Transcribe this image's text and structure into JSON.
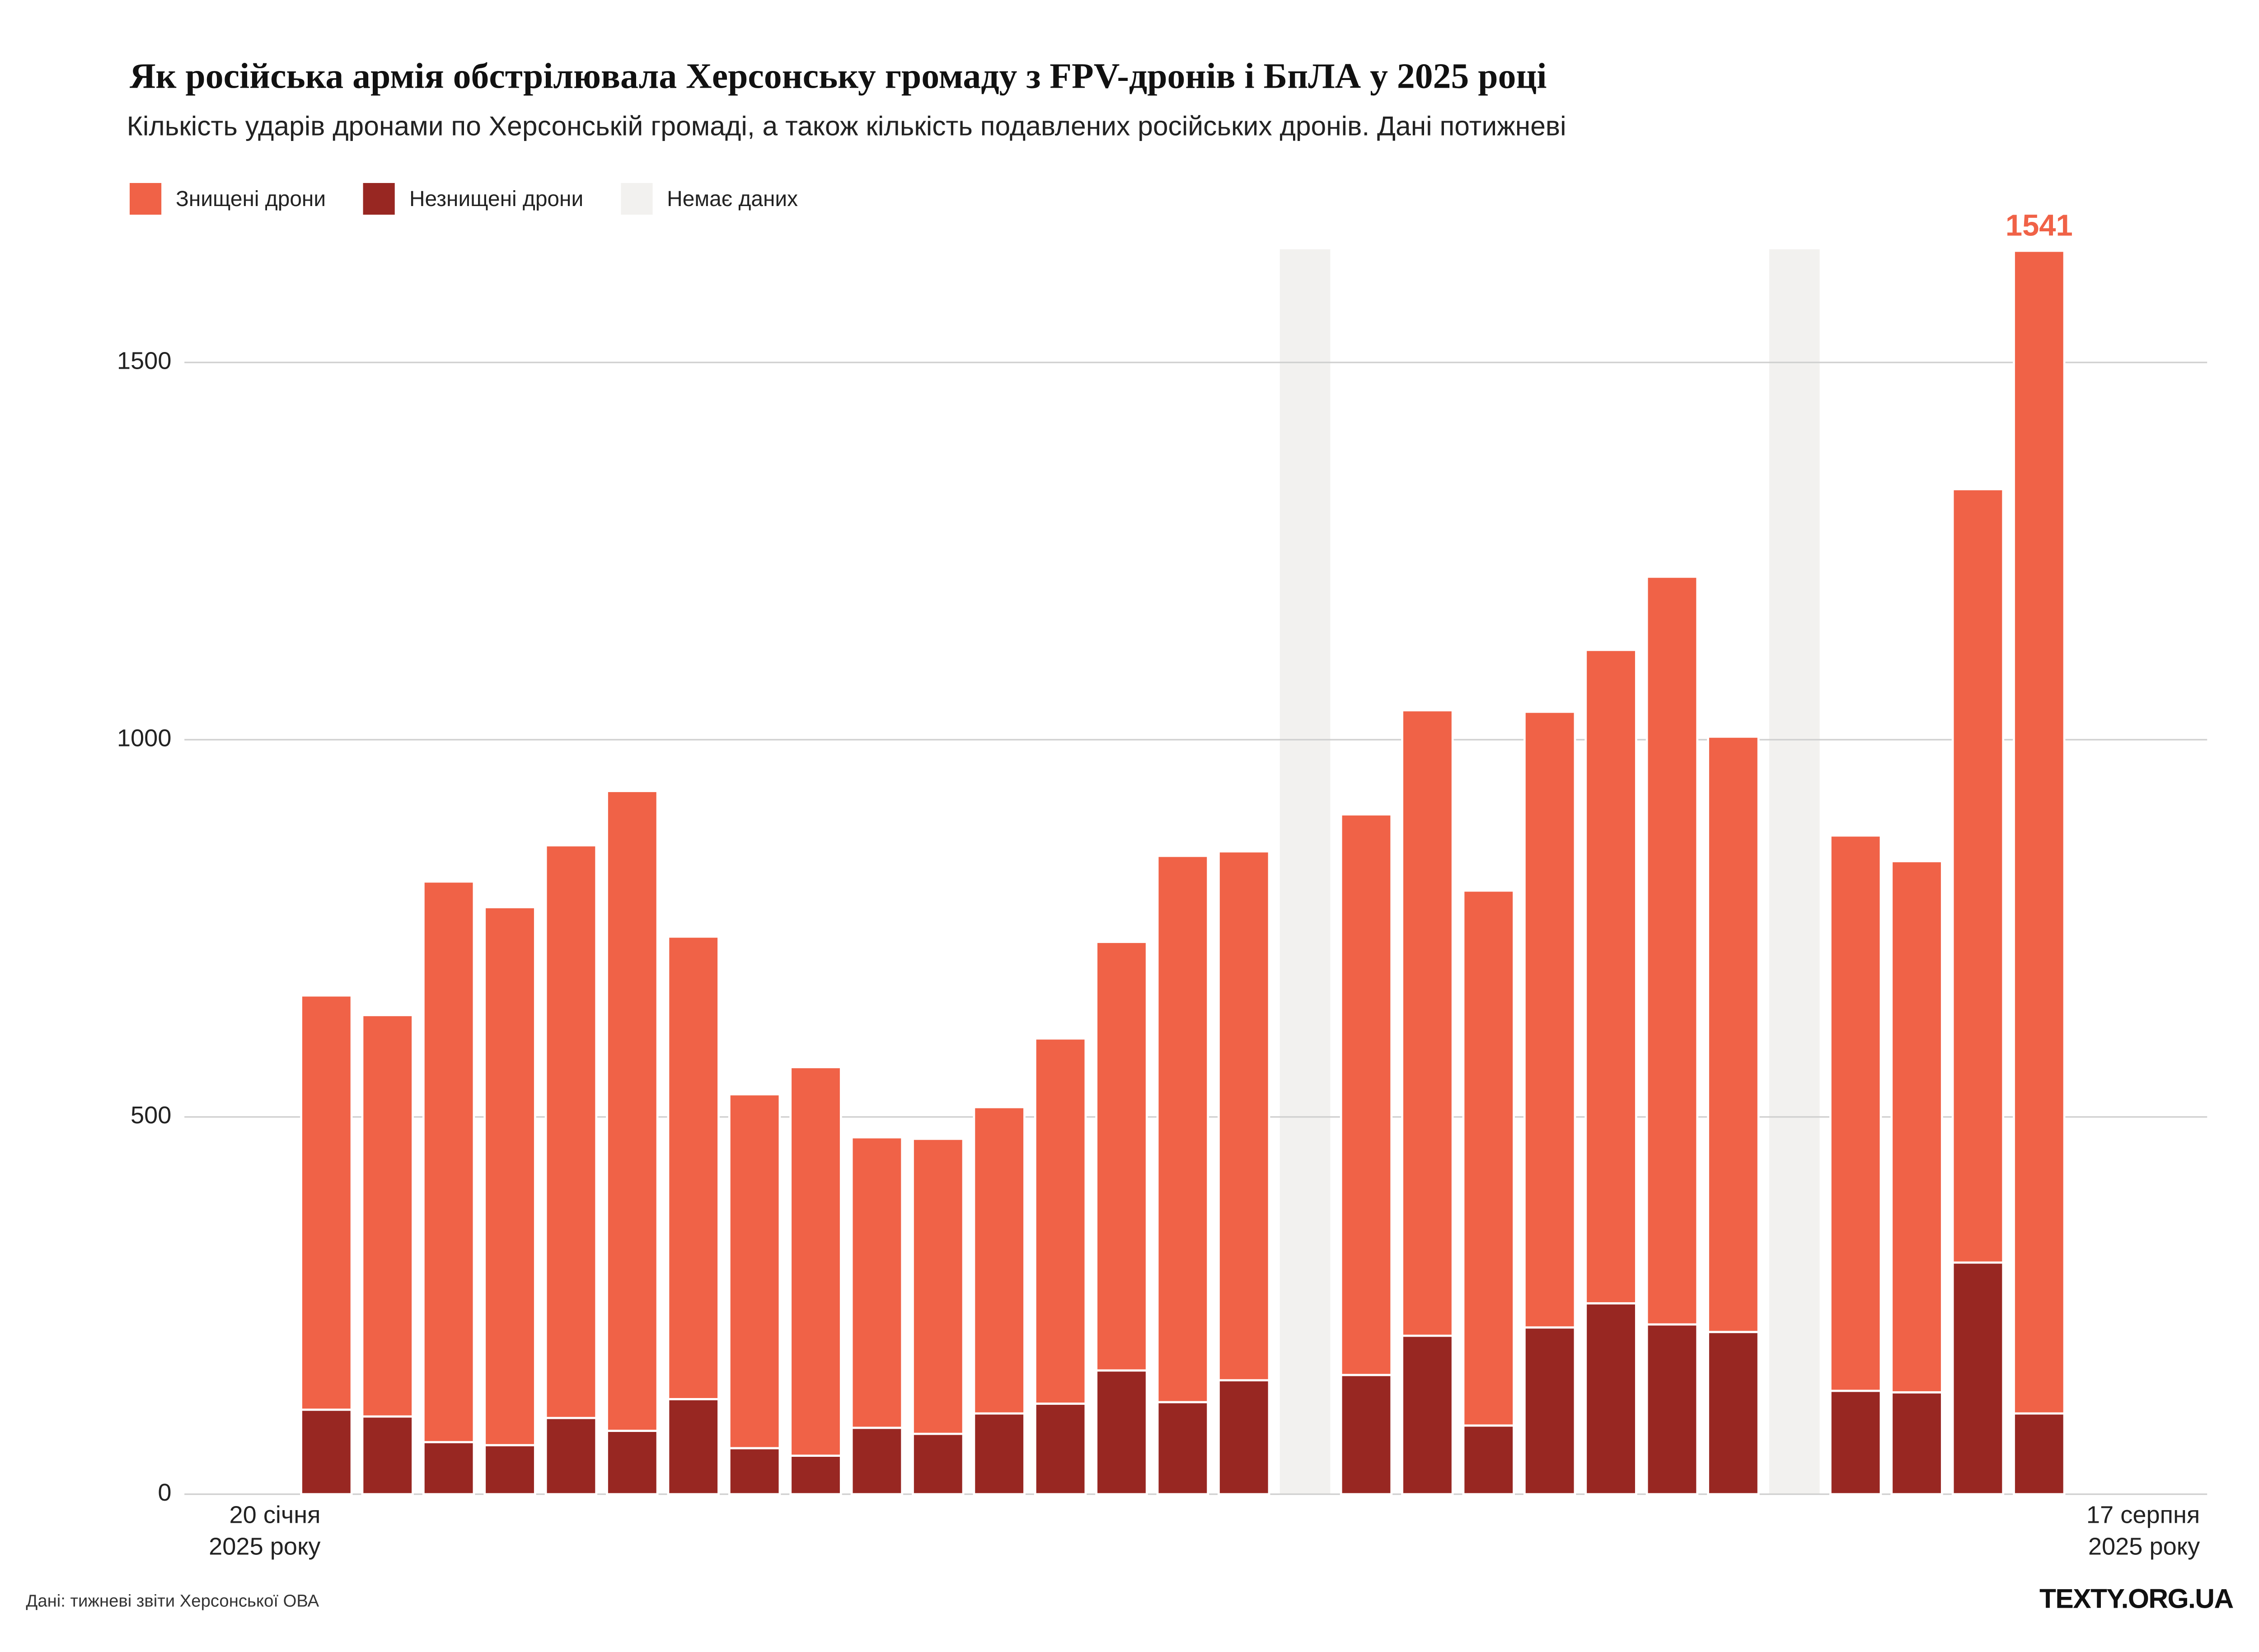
{
  "chart_data": {
    "type": "stacked_bar",
    "title": "Як російська армія обстрілювала Херсонську громаду з FPV-дронів і БпЛА у 2025 році",
    "subtitle": "Кількість ударів дронами по Херсонській громаді, а також кількість подавлених російських дронів. Дані потижневі",
    "categories": [
      "20 січня\n2025 року",
      null,
      null,
      null,
      null,
      null,
      null,
      null,
      null,
      null,
      null,
      null,
      null,
      null,
      null,
      null,
      null,
      null,
      null,
      null,
      null,
      null,
      null,
      null,
      null,
      null,
      null,
      null,
      "17 серпня\n2025 року"
    ],
    "series": [
      {
        "name": "Знищені дрони",
        "color": "#f06247",
        "values": [
          549,
          532,
          743,
          713,
          759,
          848,
          613,
          469,
          515,
          385,
          391,
          406,
          484,
          568,
          724,
          701,
          null,
          743,
          829,
          709,
          816,
          866,
          991,
          789,
          null,
          736,
          704,
          1025,
          1541
        ],
        "value_labels": [
          null,
          null,
          null,
          null,
          null,
          null,
          null,
          null,
          null,
          null,
          null,
          null,
          null,
          null,
          null,
          null,
          null,
          null,
          null,
          null,
          null,
          null,
          null,
          null,
          null,
          null,
          null,
          null,
          "1541"
        ]
      },
      {
        "name": "Незнищені дрони",
        "color": "#982722",
        "values": [
          112,
          103,
          69,
          65,
          101,
          84,
          126,
          61,
          51,
          88,
          80,
          107,
          120,
          164,
          122,
          151,
          null,
          158,
          210,
          91,
          221,
          253,
          225,
          215,
          null,
          137,
          135,
          307,
          107
        ]
      }
    ],
    "no_data": {
      "name": "Немає даних",
      "color": "#f2f1ef"
    },
    "ylim": [
      0,
      1650
    ],
    "yticks": [
      0,
      500,
      1000,
      1500
    ],
    "grid": true,
    "source": "Дані: тижневі звіти Херсонської ОВА",
    "brand": "TEXTY.ORG.UA"
  }
}
